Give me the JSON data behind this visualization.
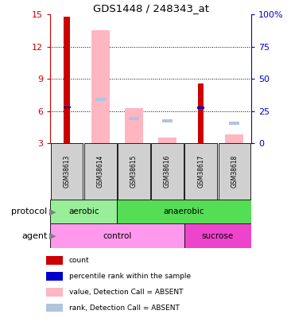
{
  "title": "GDS1448 / 248343_at",
  "samples": [
    "GSM38613",
    "GSM38614",
    "GSM38615",
    "GSM38616",
    "GSM38617",
    "GSM38618"
  ],
  "ylim_left": [
    3,
    15
  ],
  "ylim_right": [
    0,
    100
  ],
  "yticks_left": [
    3,
    6,
    9,
    12,
    15
  ],
  "yticks_right": [
    0,
    25,
    50,
    75,
    100
  ],
  "ytick_labels_left": [
    "3",
    "6",
    "9",
    "12",
    "15"
  ],
  "ytick_labels_right": [
    "0",
    "25",
    "50",
    "75",
    "100%"
  ],
  "red_bars": {
    "GSM38613": [
      3,
      14.8
    ],
    "GSM38617": [
      3,
      8.6
    ]
  },
  "blue_squares": {
    "GSM38613": 6.35,
    "GSM38617": 6.3
  },
  "pink_bars": {
    "GSM38614": [
      3,
      13.5
    ],
    "GSM38615": [
      3,
      6.3
    ],
    "GSM38616": [
      3,
      3.5
    ],
    "GSM38618": [
      3,
      3.8
    ]
  },
  "lavender_squares": {
    "GSM38614": 7.1,
    "GSM38615": 5.3,
    "GSM38616": 5.1,
    "GSM38618": 4.9
  },
  "protocol": [
    {
      "label": "aerobic",
      "span": [
        0,
        2
      ],
      "color": "#99EE99"
    },
    {
      "label": "anaerobic",
      "span": [
        2,
        6
      ],
      "color": "#55DD55"
    }
  ],
  "agent": [
    {
      "label": "control",
      "span": [
        0,
        4
      ],
      "color": "#FF99EE"
    },
    {
      "label": "sucrose",
      "span": [
        4,
        6
      ],
      "color": "#EE44CC"
    }
  ],
  "legend_items": [
    {
      "color": "#CC0000",
      "label": "count"
    },
    {
      "color": "#0000CC",
      "label": "percentile rank within the sample"
    },
    {
      "color": "#FFB6C1",
      "label": "value, Detection Call = ABSENT"
    },
    {
      "color": "#B0C4DE",
      "label": "rank, Detection Call = ABSENT"
    }
  ],
  "bg_color": "#FFFFFF",
  "left_axis_color": "#CC0000",
  "right_axis_color": "#0000CC",
  "sample_box_color": "#D0D0D0"
}
